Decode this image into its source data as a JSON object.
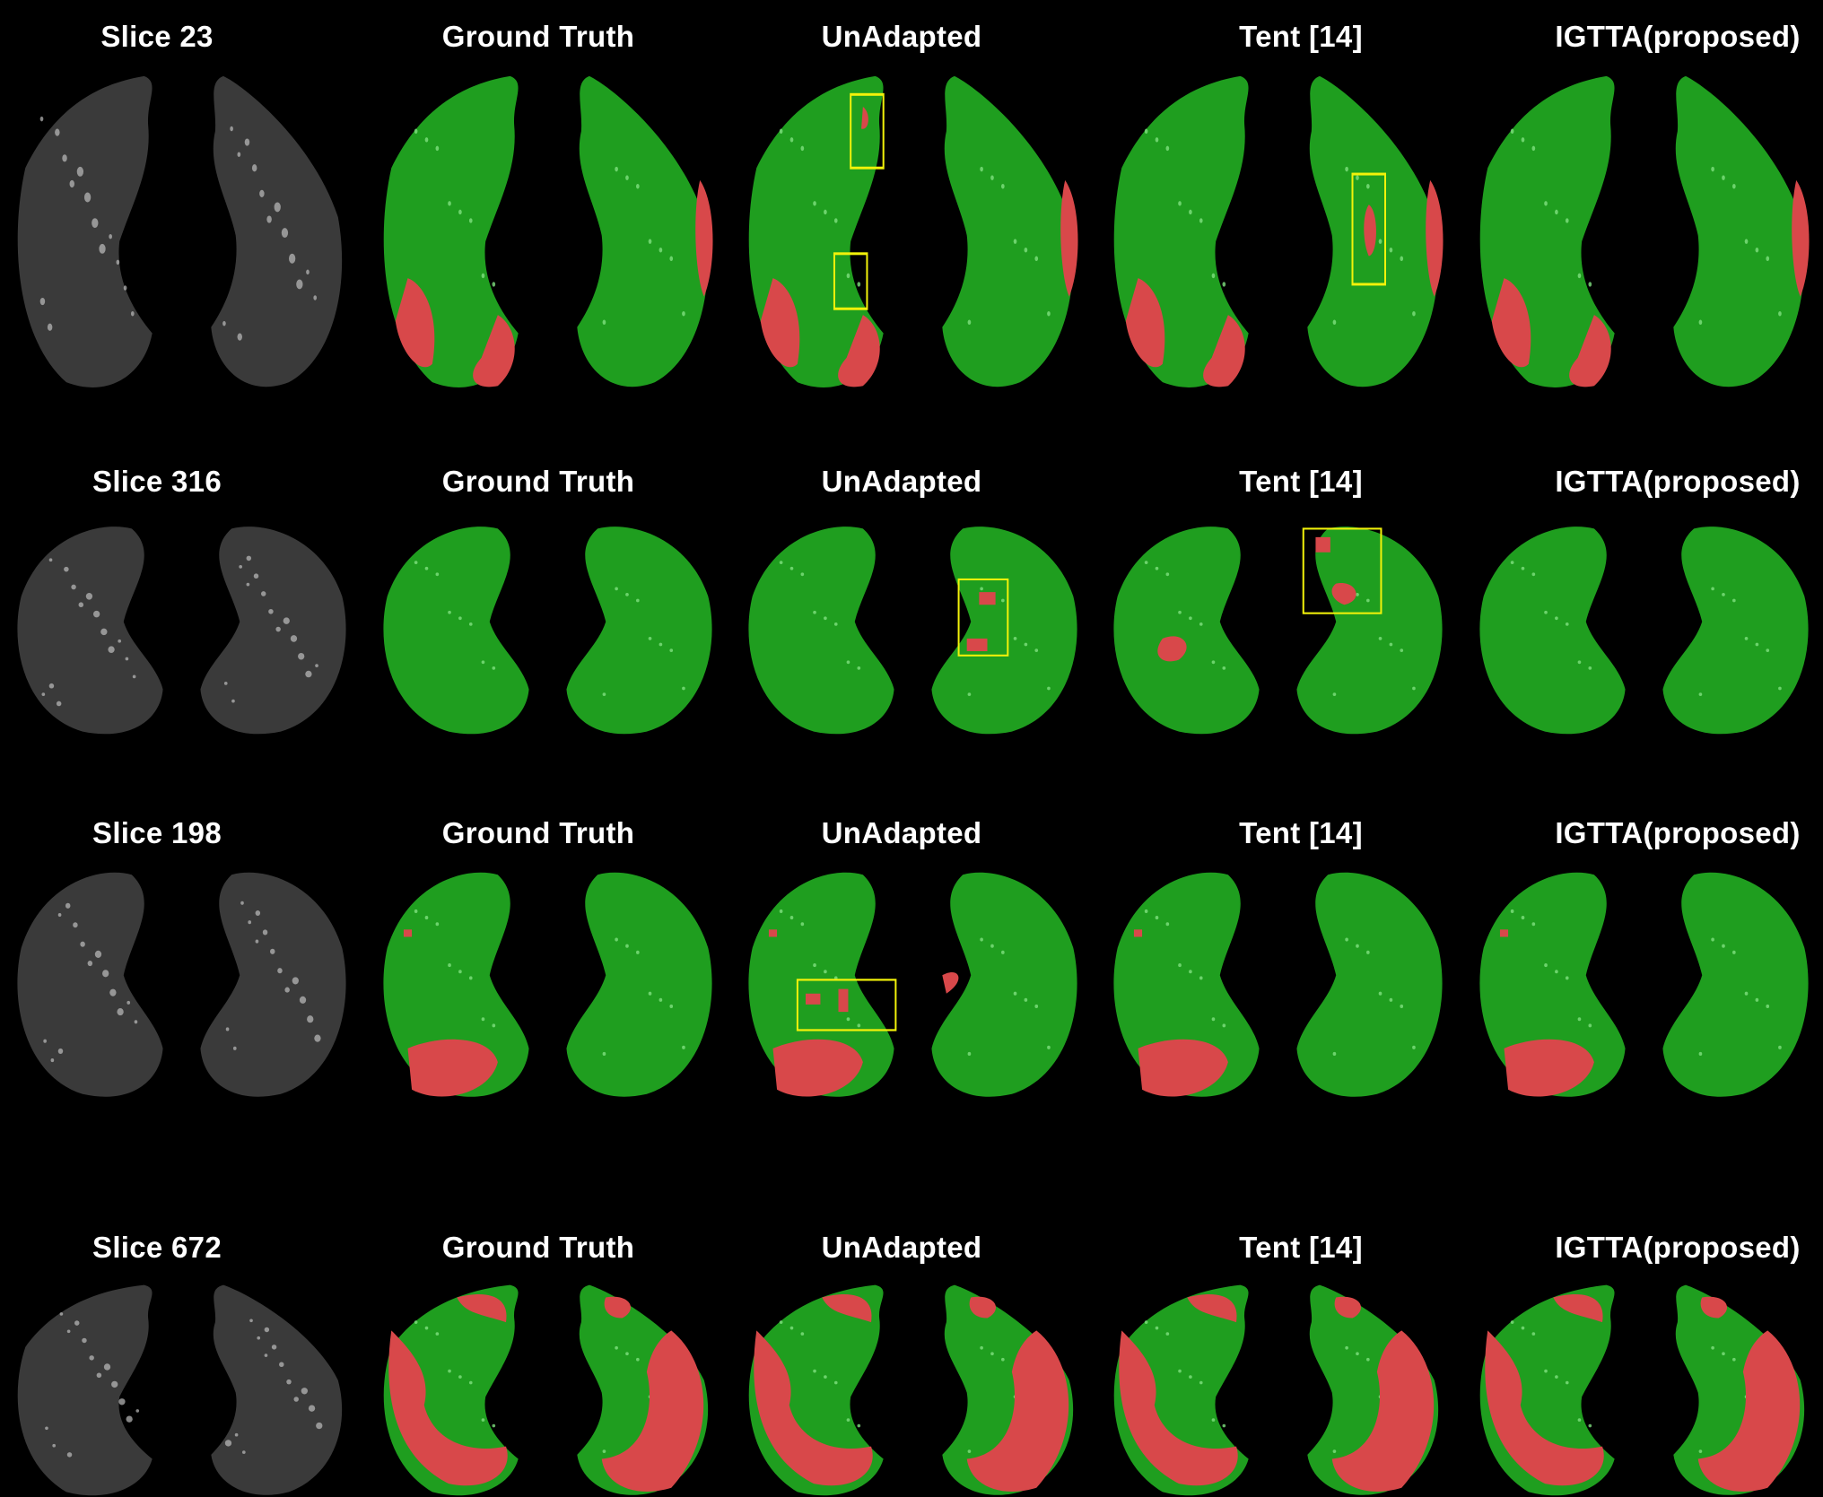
{
  "rows": [
    {
      "slice_label": "Slice 23",
      "pattern": "r1",
      "titles": [
        "Ground Truth",
        "UnAdapted",
        "Tent [14]",
        "IGTTA(proposed)"
      ]
    },
    {
      "slice_label": "Slice 316",
      "pattern": "r2",
      "titles": [
        "Ground Truth",
        "UnAdapted",
        "Tent [14]",
        "IGTTA(proposed)"
      ]
    },
    {
      "slice_label": "Slice 198",
      "pattern": "r3",
      "titles": [
        "Ground Truth",
        "UnAdapted",
        "Tent [14]",
        "IGTTA(proposed)"
      ]
    },
    {
      "slice_label": "Slice 672",
      "pattern": "r4",
      "titles": [
        "Ground Truth",
        "UnAdapted",
        "Tent [14]",
        "IGTTA(proposed)"
      ]
    }
  ],
  "panel_kinds": [
    "ct",
    "ground-truth",
    "unadapted",
    "tent",
    "igtta"
  ],
  "colors": {
    "background": "#000000",
    "ct_tissue": "#3a3a3a",
    "healthy_overlay": "#1f9e1f",
    "lesion_overlay": "#d8484a",
    "highlight_box": "#f2f20a",
    "label_text": "#ffffff"
  },
  "highlight_boxes": {
    "r1": {
      "unadapted": 2,
      "tent": 1
    },
    "r2": {
      "unadapted": 1,
      "tent": 1
    },
    "r3": {
      "unadapted": 1
    }
  }
}
